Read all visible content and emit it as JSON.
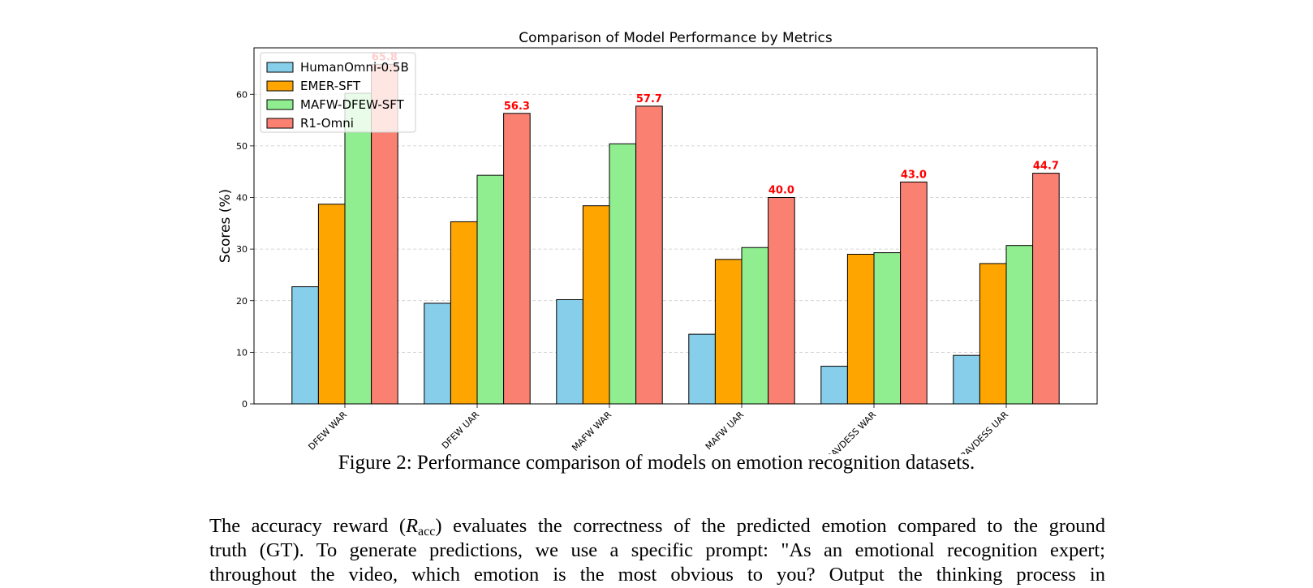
{
  "chart_data": {
    "type": "bar",
    "title": "Comparison of Model Performance by Metrics",
    "xlabel": "",
    "ylabel": "Scores (%)",
    "ylim": [
      0,
      69
    ],
    "yticks": [
      0,
      10,
      20,
      30,
      40,
      50,
      60
    ],
    "grid": "y-dashed",
    "legend": "top-left",
    "categories": [
      "DFEW WAR",
      "DFEW UAR",
      "MAFW WAR",
      "MAFW UAR",
      "RAVDESS WAR",
      "RAVDESS UAR"
    ],
    "series": [
      {
        "name": "HumanOmni-0.5B",
        "color": "#87ceeb",
        "values": [
          22.7,
          19.5,
          20.2,
          13.5,
          7.3,
          9.4
        ]
      },
      {
        "name": "EMER-SFT",
        "color": "#ffa500",
        "values": [
          38.7,
          35.3,
          38.4,
          28.0,
          29.0,
          27.2
        ]
      },
      {
        "name": "MAFW-DFEW-SFT",
        "color": "#90ee90",
        "values": [
          60.2,
          44.3,
          50.4,
          30.3,
          29.3,
          30.7
        ]
      },
      {
        "name": "R1-Omni",
        "color": "#fa8072",
        "values": [
          65.8,
          56.3,
          57.7,
          40.0,
          43.0,
          44.7
        ],
        "labeled": true
      }
    ],
    "data_labels": [
      "65.8",
      "56.3",
      "57.7",
      "40.0",
      "43.0",
      "44.7"
    ]
  },
  "caption": "Figure 2: Performance comparison of models on emotion recognition datasets.",
  "body": {
    "line1_before": "The accuracy reward (",
    "math_symbol": "R",
    "math_sub": "acc",
    "line1_after": ") evaluates the correctness of the predicted emotion compared to the ground",
    "line2": "truth (GT). To generate predictions, we use a specific prompt: \"As an emotional recognition expert;",
    "line3": "throughout the video, which emotion is the most obvious to you?  Output the thinking process in"
  }
}
